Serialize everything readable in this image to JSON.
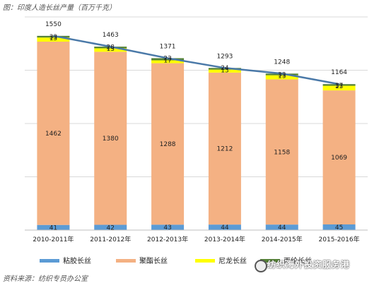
{
  "header": {
    "title": "图：印度人造长丝产量（百万千克）"
  },
  "footer": {
    "source": "资料来源：纺织专员办公室",
    "watermark": "纺织海外投资服务港"
  },
  "colors": {
    "viscose": "#5b9bd5",
    "polyester": "#f4b183",
    "nylon": "#ffff00",
    "polypropylene": "#548235",
    "line": "#4a79a8",
    "grid": "#d9d9d9"
  },
  "chart_data": {
    "type": "bar",
    "stacked": true,
    "title": "图：印度人造长丝产量（百万千克）",
    "categories": [
      "2010-2011年",
      "2011-2012年",
      "2012-2013年",
      "2013-2014年",
      "2014-2015年",
      "2015-2016年"
    ],
    "series": [
      {
        "name": "粘胶长丝",
        "key": "viscose",
        "values": [
          41,
          42,
          43,
          44,
          44,
          45
        ]
      },
      {
        "name": "聚酯长丝",
        "key": "polyester",
        "values": [
          1462,
          1380,
          1288,
          1212,
          1158,
          1069
        ]
      },
      {
        "name": "尼龙长丝",
        "key": "nylon",
        "values": [
          33,
          28,
          23,
          24,
          33,
          37
        ]
      },
      {
        "name": "丙纶长丝",
        "key": "polypropylene",
        "values": [
          13,
          13,
          17,
          13,
          13,
          13
        ]
      }
    ],
    "totals": [
      1550,
      1463,
      1371,
      1293,
      1248,
      1164
    ],
    "ylim": [
      0,
      1700
    ],
    "grid": true,
    "legend_position": "bottom"
  }
}
